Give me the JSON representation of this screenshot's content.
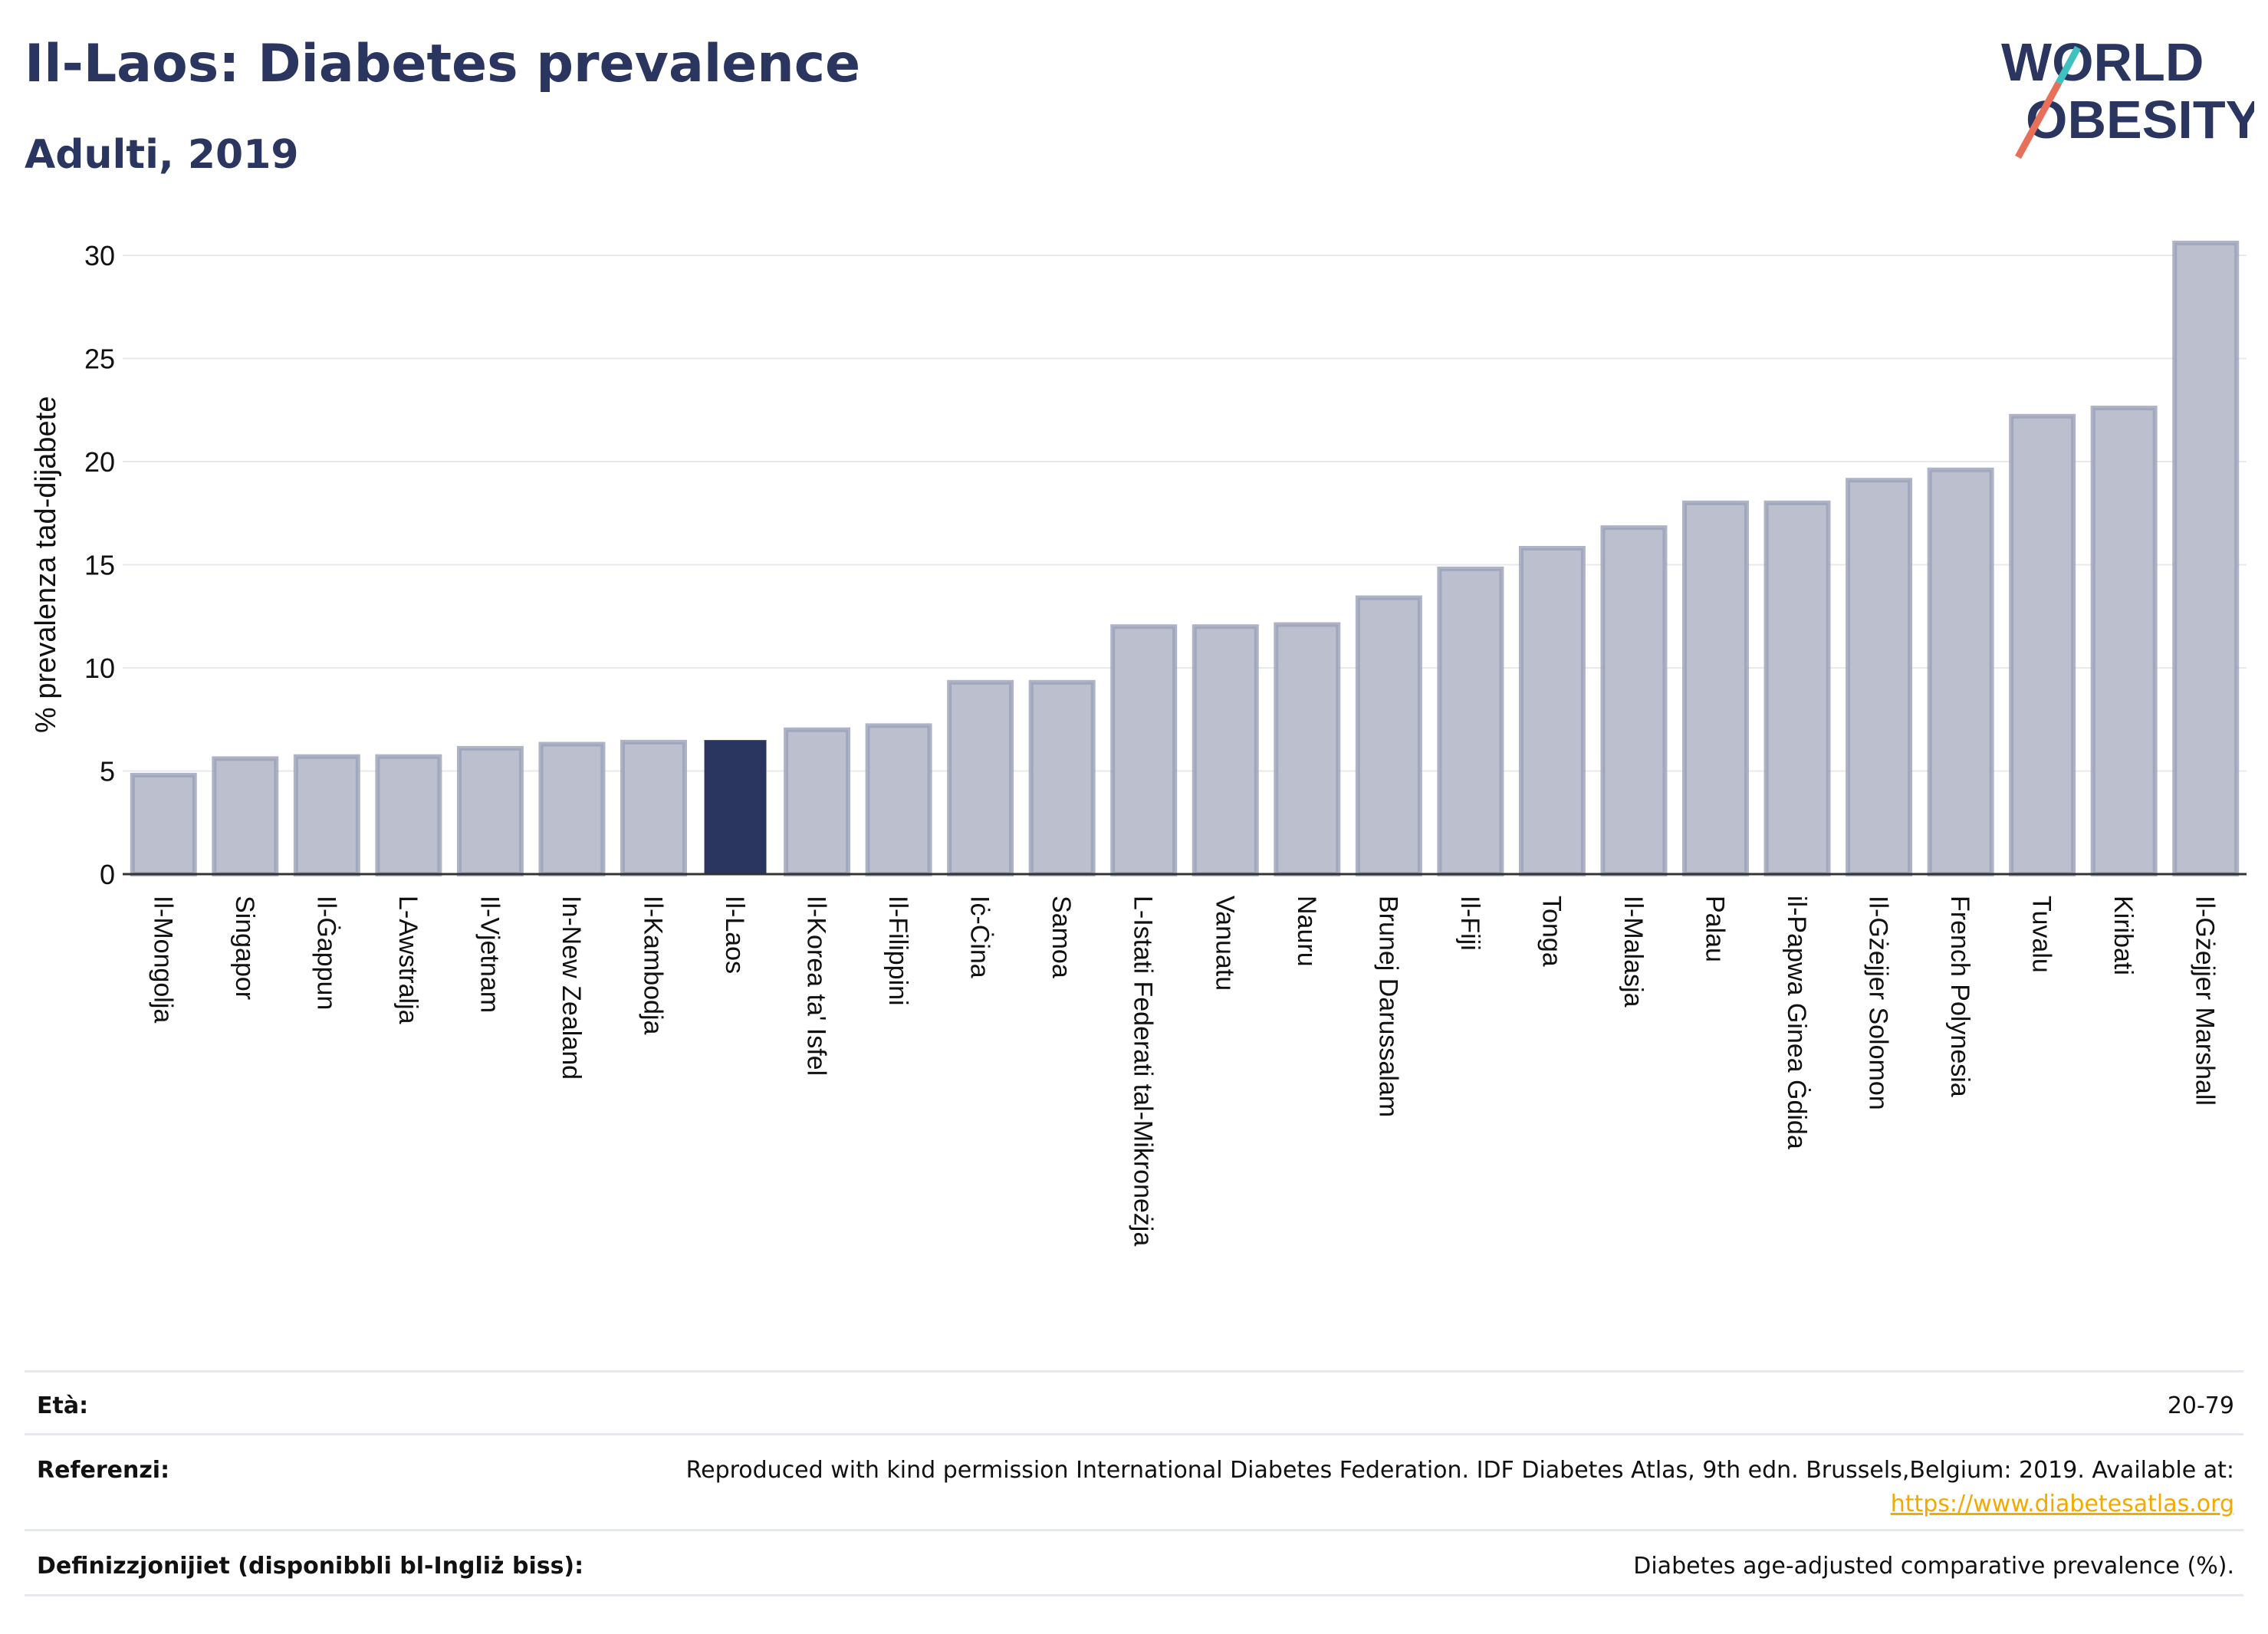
{
  "header": {
    "title": "Il-Laos: Diabetes prevalence",
    "subtitle": "Adulti, 2019"
  },
  "logo": {
    "line1": "WORLD",
    "line2": "OBESITY",
    "accent": "#e8705a",
    "accent2": "#3fc1c0"
  },
  "colors": {
    "bar": "#bcc0ce",
    "bar_edge": "#9aa0b8",
    "highlight": "#2a3560",
    "grid": "#e8e9ef",
    "axis": "#333333"
  },
  "chart_data": {
    "type": "bar",
    "ylabel": "% prevalenza tad-dijabete",
    "ylim": [
      0,
      31.5
    ],
    "yticks": [
      0,
      5,
      10,
      15,
      20,
      25,
      30
    ],
    "grid": true,
    "highlight": "Il-Laos",
    "categories": [
      "Il-Mongolja",
      "Singapor",
      "Il-Ġappun",
      "L-Awstralja",
      "Il-Vjetnam",
      "In-New Zealand",
      "Il-Kambodja",
      "Il-Laos",
      "Il-Korea ta' Isfel",
      "Il-Filippini",
      "Iċ-Ċina",
      "Samoa",
      "L-Istati Federati tal-Mikroneżja",
      "Vanuatu",
      "Nauru",
      "Brunej Darussalam",
      "Il-Fiji",
      "Tonga",
      "Il-Malasja",
      "Palau",
      "il-Papwa Ginea Ġdida",
      "Il-Gżejjer Solomon",
      "French Polynesia",
      "Tuvalu",
      "Kiribati",
      "Il-Gżejjer Marshall"
    ],
    "values": [
      4.8,
      5.6,
      5.7,
      5.7,
      6.1,
      6.3,
      6.4,
      6.5,
      7.0,
      7.2,
      9.3,
      9.3,
      12.0,
      12.0,
      12.1,
      13.4,
      14.8,
      15.8,
      16.8,
      18.0,
      18.0,
      19.1,
      19.6,
      22.2,
      22.6,
      30.6
    ]
  },
  "table": {
    "age_label": "Età:",
    "age_value": "20-79",
    "ref_label": "Referenzi:",
    "ref_text": "Reproduced with kind permission International Diabetes Federation. IDF Diabetes Atlas, 9th edn. Brussels,Belgium: 2019. Available at:",
    "ref_link": "https://www.diabetesatlas.org",
    "def_label": "Definizzjonijiet (disponibbli bl-Ingliż biss):",
    "def_value": "Diabetes age-adjusted comparative prevalence (%)."
  }
}
